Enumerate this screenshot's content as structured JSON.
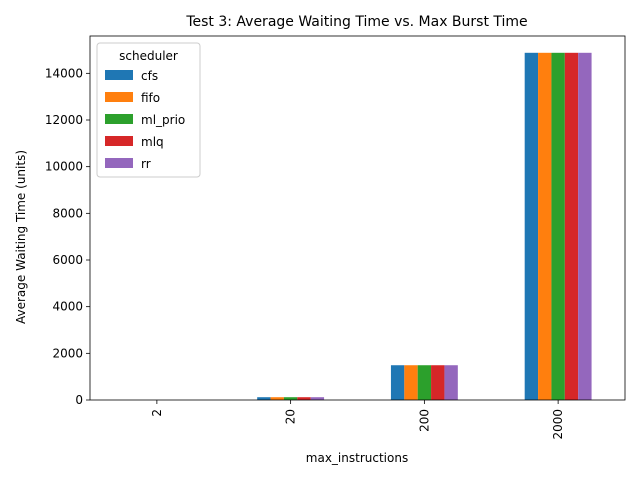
{
  "chart_data": {
    "type": "bar",
    "title": "Test 3: Average Waiting Time vs. Max Burst Time",
    "xlabel": "max_instructions",
    "ylabel": "Average Waiting Time (units)",
    "categories": [
      "2",
      "20",
      "200",
      "2000"
    ],
    "ylim": [
      0,
      15600
    ],
    "yticks": [
      0,
      2000,
      4000,
      6000,
      8000,
      10000,
      12000,
      14000
    ],
    "legend": {
      "title": "scheduler",
      "placement": "top-left"
    },
    "grid": false,
    "series": [
      {
        "name": "cfs",
        "color": "#1f77b4",
        "values": [
          0,
          120,
          1490,
          14880
        ]
      },
      {
        "name": "fifo",
        "color": "#ff7f0e",
        "values": [
          0,
          120,
          1490,
          14880
        ]
      },
      {
        "name": "ml_prio",
        "color": "#2ca02c",
        "values": [
          0,
          120,
          1490,
          14880
        ]
      },
      {
        "name": "mlq",
        "color": "#d62728",
        "values": [
          0,
          120,
          1490,
          14880
        ]
      },
      {
        "name": "rr",
        "color": "#9467bd",
        "values": [
          0,
          120,
          1490,
          14880
        ]
      }
    ]
  }
}
